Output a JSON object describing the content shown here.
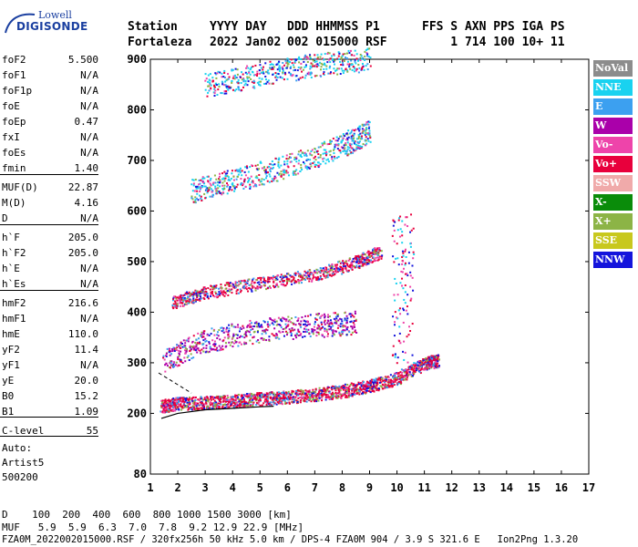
{
  "logo": {
    "line1": "Lowell",
    "line2": "DIGISONDE"
  },
  "header": {
    "labels": [
      {
        "text": "Station"
      },
      {
        "text": "YYYY DAY"
      },
      {
        "text": "DDD HHMMSS P1"
      },
      {
        "text": "FFS S AXN PPS IGA PS"
      }
    ],
    "values": [
      {
        "text": "Fortaleza"
      },
      {
        "text": "2022 Jan02"
      },
      {
        "text": "002 015000 RSF"
      },
      {
        "text": "    1 714 100 10+ 11"
      }
    ]
  },
  "params": [
    {
      "key": "foF2",
      "value": "5.500"
    },
    {
      "key": "foF1",
      "value": "N/A"
    },
    {
      "key": "foF1p",
      "value": "N/A"
    },
    {
      "key": "foE",
      "value": "N/A"
    },
    {
      "key": "foEp",
      "value": "0.47"
    },
    {
      "key": "fxI",
      "value": "N/A"
    },
    {
      "key": "foEs",
      "value": "N/A"
    },
    {
      "key": "fmin",
      "value": "1.40"
    },
    {
      "key": "MUF(D)",
      "value": "22.87"
    },
    {
      "key": "M(D)",
      "value": "4.16"
    },
    {
      "key": "D",
      "value": "N/A"
    },
    {
      "key": "h`F",
      "value": "205.0"
    },
    {
      "key": "h`F2",
      "value": "205.0"
    },
    {
      "key": "h`E",
      "value": "N/A"
    },
    {
      "key": "h`Es",
      "value": "N/A"
    },
    {
      "key": "hmF2",
      "value": "216.6"
    },
    {
      "key": "hmF1",
      "value": "N/A"
    },
    {
      "key": "hmE",
      "value": "110.0"
    },
    {
      "key": "yF2",
      "value": "11.4"
    },
    {
      "key": "yF1",
      "value": "N/A"
    },
    {
      "key": "yE",
      "value": "20.0"
    },
    {
      "key": "B0",
      "value": "15.2"
    },
    {
      "key": "B1",
      "value": "1.09"
    },
    {
      "key": "C-level",
      "value": "55"
    }
  ],
  "auto": {
    "line1": "Auto:",
    "line2": "Artist5",
    "line3": "500200"
  },
  "legend": [
    {
      "label": "NoVal",
      "color": "#8c8c8c"
    },
    {
      "label": "NNE",
      "color": "#19d2f0"
    },
    {
      "label": "E",
      "color": "#3ca0f0"
    },
    {
      "label": "W",
      "color": "#aa00aa"
    },
    {
      "label": "Vo-",
      "color": "#ee44aa"
    },
    {
      "label": "Vo+",
      "color": "#e8003c"
    },
    {
      "label": "SSW",
      "color": "#f0aaaa"
    },
    {
      "label": "X-",
      "color": "#0a8c0a"
    },
    {
      "label": "X+",
      "color": "#8cb446"
    },
    {
      "label": "SSE",
      "color": "#c8c81e"
    },
    {
      "label": "NNW",
      "color": "#1414dc"
    }
  ],
  "footer": {
    "line1": "D    100  200  400  600  800 1000 1500 3000 [km]",
    "line2": "MUF   5.9  5.9  6.3  7.0  7.8  9.2 12.9 22.9 [MHz]",
    "line3": "FZA0M_2022002015000.RSF / 320fx256h 50 kHz 5.0 km / DPS-4 FZA0M 904 / 3.9 S 321.6 E   Ion2Png 1.3.20"
  },
  "chart_data": {
    "type": "scatter",
    "xlim": [
      1,
      17
    ],
    "ylim": [
      80,
      900
    ],
    "xticks": [
      1,
      2,
      3,
      4,
      5,
      6,
      7,
      8,
      9,
      10,
      11,
      12,
      13,
      14,
      15,
      16,
      17
    ],
    "yticks": [
      80,
      200,
      300,
      400,
      500,
      600,
      700,
      800,
      900
    ],
    "grid": false,
    "legend_position": "right",
    "traces": [
      {
        "name": "F-trace 1 hop",
        "color_code": "Vo+",
        "x": [
          1.4,
          2,
          3,
          4,
          5,
          6,
          7,
          8,
          9,
          10,
          11,
          11.5
        ],
        "y": [
          215,
          220,
          222,
          225,
          230,
          233,
          238,
          245,
          255,
          270,
          300,
          305
        ]
      },
      {
        "name": "F-trace 2 hop",
        "color_code": "W",
        "x": [
          1.5,
          3,
          5,
          7,
          8.5
        ],
        "y": [
          305,
          345,
          365,
          375,
          380
        ]
      },
      {
        "name": "F-trace 2 hop",
        "color_code": "Vo+",
        "x": [
          1.8,
          3,
          5,
          7,
          8.5,
          9.4
        ],
        "y": [
          420,
          440,
          458,
          475,
          500,
          520
        ]
      },
      {
        "name": "F-trace 3 hop",
        "color_code": "NNE",
        "x": [
          2.5,
          4,
          6,
          8,
          9
        ],
        "y": [
          640,
          660,
          690,
          730,
          760
        ]
      },
      {
        "name": "F-trace 4 hop",
        "color_code": "NNE",
        "x": [
          3,
          5,
          7,
          9
        ],
        "y": [
          850,
          870,
          890,
          900
        ]
      }
    ],
    "profile": {
      "x": [
        1.4,
        2,
        3,
        4,
        5,
        5.5
      ],
      "y": [
        190,
        200,
        207,
        210,
        213,
        214
      ]
    },
    "dashed": {
      "x": [
        1.3,
        2.5
      ],
      "y": [
        280,
        240
      ]
    }
  }
}
